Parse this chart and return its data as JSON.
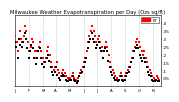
{
  "title": "Milwaukee Weather Evapotranspiration per Day (Ozs sq/ft)",
  "title_fontsize": 3.8,
  "bg_color": "#ffffff",
  "red_color": "#ff0000",
  "black_color": "#000000",
  "grid_color": "#aaaaaa",
  "ylim": [
    0.0,
    0.45
  ],
  "yticks": [
    0.05,
    0.1,
    0.15,
    0.2,
    0.25,
    0.3,
    0.35,
    0.4
  ],
  "ytick_labels": [
    ".05",
    ".1",
    ".15",
    ".2",
    ".25",
    ".3",
    ".35",
    ".4"
  ],
  "ylabel_fontsize": 3.2,
  "xtick_fontsize": 2.8,
  "red_y": [
    0.32,
    0.28,
    0.22,
    0.35,
    0.3,
    0.28,
    0.32,
    0.38,
    0.35,
    0.28,
    0.22,
    0.25,
    0.3,
    0.28,
    0.22,
    0.18,
    0.22,
    0.25,
    0.28,
    0.22,
    0.18,
    0.15,
    0.18,
    0.22,
    0.25,
    0.2,
    0.15,
    0.12,
    0.1,
    0.12,
    0.15,
    0.1,
    0.08,
    0.06,
    0.08,
    0.1,
    0.08,
    0.06,
    0.05,
    0.04,
    0.05,
    0.06,
    0.08,
    0.05,
    0.04,
    0.03,
    0.05,
    0.08,
    0.1,
    0.12,
    0.15,
    0.18,
    0.22,
    0.28,
    0.32,
    0.35,
    0.38,
    0.35,
    0.32,
    0.28,
    0.3,
    0.32,
    0.28,
    0.25,
    0.22,
    0.25,
    0.28,
    0.25,
    0.2,
    0.15,
    0.12,
    0.1,
    0.08,
    0.06,
    0.05,
    0.04,
    0.06,
    0.08,
    0.06,
    0.04,
    0.06,
    0.08,
    0.1,
    0.12,
    0.15,
    0.18,
    0.22,
    0.25,
    0.28,
    0.3,
    0.28,
    0.25,
    0.22,
    0.2,
    0.22,
    0.18,
    0.15,
    0.12,
    0.1,
    0.08,
    0.06,
    0.05,
    0.04,
    0.06,
    0.05,
    0.04
  ],
  "red_x": [
    2,
    5,
    8,
    11,
    14,
    17,
    20,
    23,
    26,
    29,
    32,
    35,
    38,
    41,
    44,
    47,
    50,
    53,
    56,
    59,
    62,
    65,
    68,
    71,
    74,
    77,
    80,
    83,
    86,
    89,
    92,
    95,
    98,
    101,
    104,
    107,
    110,
    113,
    116,
    119,
    122,
    125,
    128,
    131,
    134,
    137,
    140,
    143,
    146,
    149,
    152,
    155,
    158,
    161,
    164,
    167,
    170,
    173,
    176,
    179,
    182,
    185,
    188,
    191,
    194,
    197,
    200,
    203,
    206,
    209,
    212,
    215,
    218,
    221,
    224,
    227,
    230,
    233,
    236,
    239,
    242,
    245,
    248,
    251,
    254,
    257,
    260,
    263,
    266,
    269,
    272,
    275,
    278,
    281,
    284,
    287,
    290,
    293,
    296,
    299,
    302,
    305,
    308,
    311,
    314,
    317
  ],
  "black_y": [
    0.28,
    0.25,
    0.18,
    0.3,
    0.26,
    0.25,
    0.28,
    0.34,
    0.3,
    0.24,
    0.18,
    0.22,
    0.26,
    0.24,
    0.18,
    0.14,
    0.18,
    0.22,
    0.24,
    0.18,
    0.14,
    0.12,
    0.15,
    0.18,
    0.2,
    0.16,
    0.12,
    0.09,
    0.07,
    0.09,
    0.12,
    0.07,
    0.05,
    0.04,
    0.06,
    0.07,
    0.06,
    0.04,
    0.03,
    0.03,
    0.04,
    0.04,
    0.06,
    0.04,
    0.03,
    0.02,
    0.03,
    0.06,
    0.08,
    0.09,
    0.12,
    0.15,
    0.18,
    0.24,
    0.28,
    0.3,
    0.34,
    0.3,
    0.28,
    0.24,
    0.26,
    0.28,
    0.24,
    0.22,
    0.18,
    0.22,
    0.24,
    0.22,
    0.16,
    0.12,
    0.09,
    0.07,
    0.05,
    0.04,
    0.04,
    0.03,
    0.04,
    0.06,
    0.04,
    0.03,
    0.04,
    0.06,
    0.08,
    0.09,
    0.12,
    0.15,
    0.18,
    0.22,
    0.24,
    0.26,
    0.24,
    0.2,
    0.18,
    0.16,
    0.18,
    0.15,
    0.12,
    0.09,
    0.07,
    0.06,
    0.04,
    0.03,
    0.03,
    0.04,
    0.03,
    0.03
  ],
  "black_x": [
    1,
    4,
    7,
    10,
    13,
    16,
    19,
    22,
    25,
    28,
    31,
    34,
    37,
    40,
    43,
    46,
    49,
    52,
    55,
    58,
    61,
    64,
    67,
    70,
    73,
    76,
    79,
    82,
    85,
    88,
    91,
    94,
    97,
    100,
    103,
    106,
    109,
    112,
    115,
    118,
    121,
    124,
    127,
    130,
    133,
    136,
    139,
    142,
    145,
    148,
    151,
    154,
    157,
    160,
    163,
    166,
    169,
    172,
    175,
    178,
    181,
    184,
    187,
    190,
    193,
    196,
    199,
    202,
    205,
    208,
    211,
    214,
    217,
    220,
    223,
    226,
    229,
    232,
    235,
    238,
    241,
    244,
    247,
    250,
    253,
    256,
    259,
    262,
    265,
    268,
    271,
    274,
    277,
    280,
    283,
    286,
    289,
    292,
    295,
    298,
    301,
    304,
    307,
    310,
    313,
    316
  ],
  "vline_positions": [
    31,
    62,
    90,
    120,
    151,
    181,
    212,
    242,
    273,
    303,
    320
  ],
  "n_points": 320,
  "legend_label": "ET"
}
